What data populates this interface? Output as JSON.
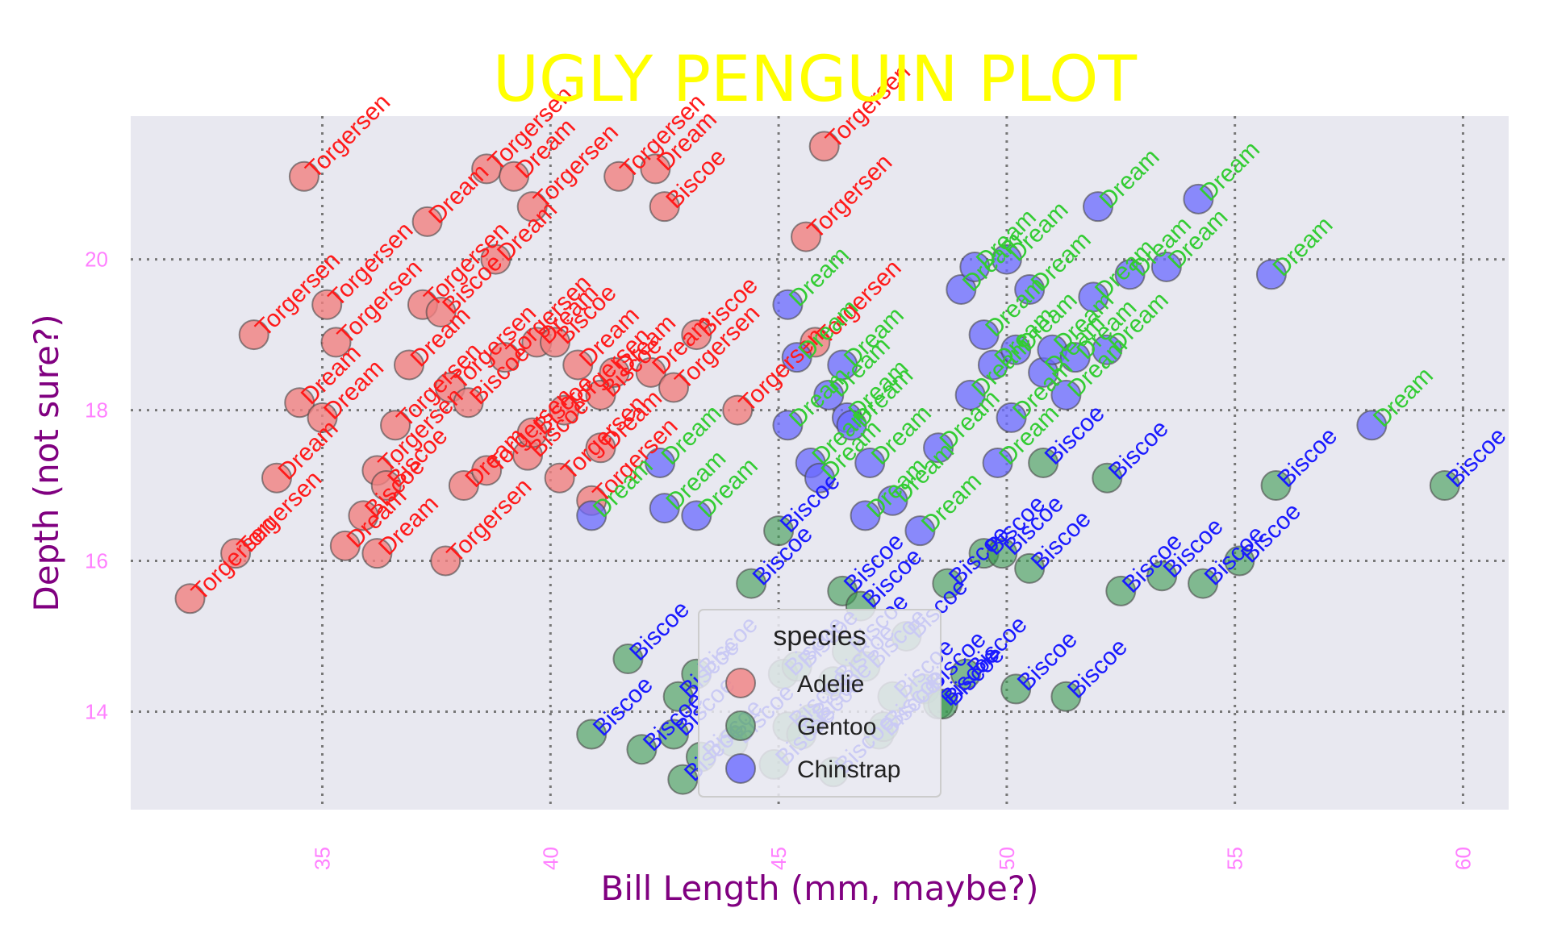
{
  "chart_data": {
    "type": "scatter",
    "title": "UGLY PENGUIN PLOT",
    "xlabel": "Bill Length (mm, maybe?)",
    "ylabel": "Depth (not sure?)",
    "xlim": [
      30.8,
      61.0
    ],
    "ylim": [
      12.7,
      21.9
    ],
    "xticks": [
      35,
      40,
      45,
      50,
      55,
      60
    ],
    "yticks": [
      14,
      16,
      18,
      20
    ],
    "grid": true,
    "legend": {
      "title": "species",
      "placement": "bottom-center"
    },
    "colors": {
      "Adelie": "#f08080",
      "Gentoo": "#3a9a50",
      "Chinstrap": "#6a6aff",
      "label_Torgersen": "#ff1a1a",
      "label_Dream_adelie": "#ff1a1a",
      "label_Biscoe_adelie": "#ff1a1a",
      "label_Dream": "#33cc33",
      "label_Biscoe": "#1a1aff"
    },
    "series": [
      {
        "name": "Adelie",
        "labels": [
          "Torgersen",
          "Torgersen",
          "Torgersen",
          "Torgersen",
          "Dream",
          "Dream",
          "Torgersen",
          "Torgersen",
          "Dream",
          "Biscoe",
          "Torgersen",
          "Biscoe",
          "Torgersen",
          "Dream",
          "Torgersen",
          "Dream",
          "Biscoe",
          "Torgersen",
          "Dream",
          "Biscoe",
          "Torgersen",
          "Dream",
          "Torgersen",
          "Dream",
          "Biscoe",
          "Torgersen",
          "Dream",
          "Biscoe",
          "Torgersen",
          "Dream",
          "Torgersen",
          "Biscoe",
          "Dream",
          "Torgersen",
          "Dream",
          "Biscoe",
          "Torgersen",
          "Dream",
          "Biscoe",
          "Torgersen"
        ],
        "points": [
          [
            34.6,
            21.1
          ],
          [
            33.5,
            19.0
          ],
          [
            32.1,
            15.5
          ],
          [
            33.1,
            16.1
          ],
          [
            34.0,
            17.1
          ],
          [
            34.5,
            18.1
          ],
          [
            35.1,
            19.4
          ],
          [
            35.3,
            18.9
          ],
          [
            35.5,
            16.2
          ],
          [
            35.9,
            16.6
          ],
          [
            36.2,
            17.2
          ],
          [
            36.4,
            17.0
          ],
          [
            36.6,
            17.8
          ],
          [
            36.9,
            18.6
          ],
          [
            37.2,
            19.4
          ],
          [
            37.3,
            20.5
          ],
          [
            37.6,
            19.3
          ],
          [
            37.8,
            18.3
          ],
          [
            38.1,
            17.0
          ],
          [
            38.2,
            18.1
          ],
          [
            38.6,
            21.2
          ],
          [
            38.8,
            20.0
          ],
          [
            39.0,
            18.7
          ],
          [
            39.2,
            21.1
          ],
          [
            39.5,
            17.4
          ],
          [
            39.6,
            20.7
          ],
          [
            39.7,
            18.9
          ],
          [
            40.1,
            18.9
          ],
          [
            40.3,
            18.0
          ],
          [
            40.6,
            18.6
          ],
          [
            40.9,
            16.8
          ],
          [
            41.1,
            18.2
          ],
          [
            41.4,
            18.5
          ],
          [
            41.5,
            21.1
          ],
          [
            42.2,
            18.5
          ],
          [
            42.5,
            20.7
          ],
          [
            42.7,
            18.3
          ],
          [
            42.3,
            21.2
          ],
          [
            43.2,
            19.0
          ],
          [
            46.0,
            21.5
          ],
          [
            44.1,
            18.0
          ],
          [
            45.8,
            18.9
          ],
          [
            45.6,
            20.3
          ],
          [
            37.7,
            16.0
          ],
          [
            36.2,
            16.1
          ],
          [
            35.0,
            17.9
          ],
          [
            38.6,
            17.2
          ],
          [
            40.2,
            17.1
          ],
          [
            41.1,
            17.5
          ],
          [
            39.6,
            17.7
          ]
        ]
      },
      {
        "name": "Gentoo",
        "labels": [
          "Biscoe",
          "Biscoe",
          "Biscoe",
          "Biscoe",
          "Biscoe",
          "Biscoe",
          "Biscoe",
          "Biscoe",
          "Biscoe",
          "Biscoe",
          "Biscoe",
          "Biscoe",
          "Biscoe",
          "Biscoe",
          "Biscoe",
          "Biscoe",
          "Biscoe",
          "Biscoe",
          "Biscoe",
          "Biscoe",
          "Biscoe",
          "Biscoe",
          "Biscoe",
          "Biscoe",
          "Biscoe",
          "Biscoe",
          "Biscoe",
          "Biscoe",
          "Biscoe",
          "Biscoe",
          "Biscoe",
          "Biscoe",
          "Biscoe",
          "Biscoe",
          "Biscoe",
          "Biscoe",
          "Biscoe",
          "Biscoe",
          "Biscoe",
          "Biscoe"
        ],
        "points": [
          [
            41.7,
            14.7
          ],
          [
            40.9,
            13.7
          ],
          [
            42.0,
            13.5
          ],
          [
            42.7,
            13.7
          ],
          [
            42.8,
            14.2
          ],
          [
            42.9,
            13.1
          ],
          [
            43.2,
            14.5
          ],
          [
            43.3,
            13.4
          ],
          [
            44.0,
            13.6
          ],
          [
            44.4,
            15.7
          ],
          [
            44.9,
            13.3
          ],
          [
            45.1,
            14.5
          ],
          [
            45.2,
            13.8
          ],
          [
            45.4,
            14.6
          ],
          [
            45.5,
            13.7
          ],
          [
            45.7,
            13.9
          ],
          [
            46.2,
            14.4
          ],
          [
            46.4,
            15.6
          ],
          [
            46.5,
            14.8
          ],
          [
            46.8,
            15.4
          ],
          [
            46.9,
            14.6
          ],
          [
            47.2,
            13.7
          ],
          [
            47.5,
            14.2
          ],
          [
            47.8,
            15.0
          ],
          [
            48.2,
            14.3
          ],
          [
            48.5,
            14.1
          ],
          [
            48.7,
            15.7
          ],
          [
            49.1,
            14.5
          ],
          [
            49.5,
            16.1
          ],
          [
            49.9,
            16.1
          ],
          [
            50.2,
            14.3
          ],
          [
            50.5,
            15.9
          ],
          [
            50.8,
            17.3
          ],
          [
            51.3,
            14.2
          ],
          [
            52.2,
            17.1
          ],
          [
            52.5,
            15.6
          ],
          [
            53.4,
            15.8
          ],
          [
            54.3,
            15.7
          ],
          [
            55.1,
            16.0
          ],
          [
            55.9,
            17.0
          ],
          [
            59.6,
            17.0
          ],
          [
            45.0,
            16.4
          ],
          [
            46.2,
            13.2
          ],
          [
            48.6,
            14.1
          ],
          [
            47.3,
            13.8
          ]
        ]
      },
      {
        "name": "Chinstrap",
        "labels": [
          "Dream",
          "Dream",
          "Dream",
          "Dream",
          "Dream",
          "Dream",
          "Dream",
          "Dream",
          "Dream",
          "Dream",
          "Dream",
          "Dream",
          "Dream",
          "Dream",
          "Dream",
          "Dream",
          "Dream",
          "Dream",
          "Dream",
          "Dream",
          "Dream",
          "Dream",
          "Dream",
          "Dream",
          "Dream",
          "Dream",
          "Dream",
          "Dream",
          "Dream",
          "Dream",
          "Dream",
          "Dream",
          "Dream",
          "Dream",
          "Dream"
        ],
        "points": [
          [
            40.9,
            16.6
          ],
          [
            42.5,
            16.7
          ],
          [
            43.2,
            16.6
          ],
          [
            42.4,
            17.3
          ],
          [
            45.2,
            17.8
          ],
          [
            45.4,
            18.7
          ],
          [
            45.7,
            17.3
          ],
          [
            45.9,
            17.1
          ],
          [
            46.1,
            18.2
          ],
          [
            46.4,
            18.6
          ],
          [
            46.5,
            17.9
          ],
          [
            46.9,
            16.6
          ],
          [
            47.0,
            17.3
          ],
          [
            47.5,
            16.8
          ],
          [
            48.1,
            16.4
          ],
          [
            48.5,
            17.5
          ],
          [
            49.0,
            19.6
          ],
          [
            49.2,
            18.2
          ],
          [
            49.5,
            19.0
          ],
          [
            49.7,
            18.6
          ],
          [
            50.1,
            17.9
          ],
          [
            50.2,
            18.8
          ],
          [
            50.5,
            19.6
          ],
          [
            50.8,
            18.5
          ],
          [
            51.0,
            18.8
          ],
          [
            51.3,
            18.2
          ],
          [
            51.5,
            18.7
          ],
          [
            51.9,
            19.5
          ],
          [
            52.0,
            20.7
          ],
          [
            52.2,
            18.8
          ],
          [
            52.7,
            19.8
          ],
          [
            53.5,
            19.9
          ],
          [
            54.2,
            20.8
          ],
          [
            55.8,
            19.8
          ],
          [
            58.0,
            17.8
          ],
          [
            45.2,
            19.4
          ],
          [
            49.3,
            19.9
          ],
          [
            50.0,
            20.0
          ],
          [
            46.6,
            17.8
          ],
          [
            49.8,
            17.3
          ]
        ]
      }
    ]
  }
}
